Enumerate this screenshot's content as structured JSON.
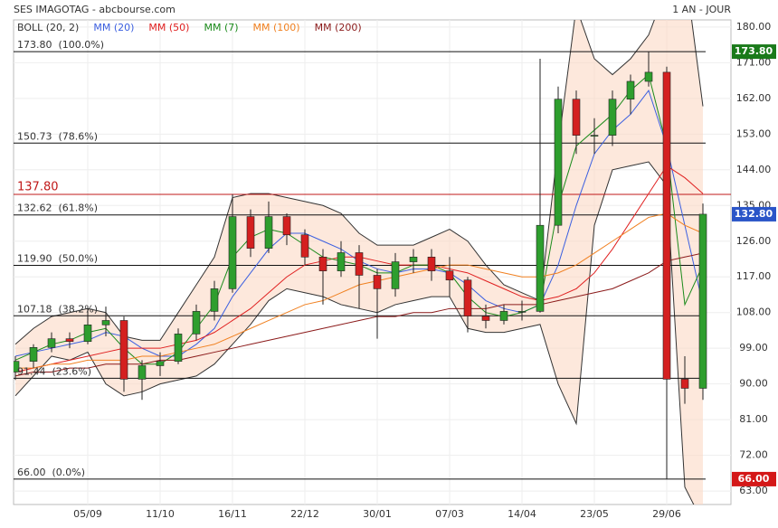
{
  "chart_data": {
    "type": "candlestick",
    "title": "SES IMAGOTAG - abcbourse.com",
    "period": "1 AN - JOUR",
    "up_color": "#2e9e2e",
    "down_color": "#d42020",
    "categories": [
      null,
      null,
      null,
      null,
      "05/09",
      null,
      null,
      null,
      "11/10",
      null,
      null,
      null,
      "16/11",
      null,
      null,
      null,
      "22/12",
      null,
      null,
      null,
      "30/01",
      null,
      null,
      null,
      "07/03",
      null,
      null,
      null,
      "14/04",
      null,
      null,
      null,
      "23/05",
      null,
      null,
      null,
      "29/06",
      null,
      null
    ],
    "open": [
      93,
      95.7,
      99.2,
      101.4,
      100.7,
      104.9,
      106,
      91.2,
      94.6,
      95.7,
      102.6,
      108.3,
      114,
      132.2,
      124.2,
      132.2,
      127.6,
      122,
      118.5,
      123.1,
      117.4,
      114,
      120.8,
      122,
      118.5,
      116.2,
      107.1,
      106,
      108.3,
      108.3,
      130,
      161.8,
      152.7,
      152.7,
      161.8,
      166.3,
      168.6,
      91.2,
      88.9
    ],
    "high": [
      97,
      100,
      103,
      103,
      109,
      109.5,
      107,
      96,
      98,
      104,
      110,
      116,
      137.8,
      134,
      136,
      133,
      129,
      124,
      126,
      125,
      119,
      123,
      124,
      124,
      122,
      117,
      110,
      110,
      111,
      172,
      165,
      164,
      157,
      164,
      168,
      173.8,
      170,
      97,
      135.5
    ],
    "low": [
      91,
      94,
      98,
      99,
      100,
      102,
      88,
      86,
      92,
      95,
      101,
      106,
      113,
      122,
      123,
      125,
      120,
      110,
      117,
      109,
      101.4,
      112,
      118,
      116,
      112,
      103,
      104,
      105,
      106,
      108,
      128,
      148,
      148,
      150,
      158,
      165,
      66,
      85,
      86
    ],
    "close": [
      95.7,
      99.2,
      101.4,
      100.7,
      104.9,
      106,
      91.2,
      94.6,
      95.7,
      102.6,
      108.3,
      114,
      132.2,
      124.2,
      132.2,
      127.6,
      122,
      118.5,
      123.1,
      117.4,
      114,
      120.8,
      122,
      118.5,
      116.2,
      107.1,
      106,
      108.3,
      108.3,
      130,
      161.8,
      152.7,
      152.7,
      161.8,
      166.3,
      168.6,
      91.2,
      88.9,
      132.8
    ],
    "bollinger": {
      "name": "BOLL (20, 2)",
      "color": "#333333",
      "fill": "#fbd9c4",
      "upper": [
        100,
        104,
        107,
        108,
        109,
        108,
        102,
        101,
        101,
        108,
        115,
        122,
        137,
        138,
        138,
        137,
        136,
        135,
        133,
        128,
        125,
        125,
        125,
        127,
        129,
        126,
        120,
        115,
        113,
        111,
        150,
        185,
        172,
        168,
        172,
        178,
        190,
        195,
        160
      ],
      "lower": [
        87,
        92,
        97,
        96,
        98,
        90,
        87,
        88,
        90,
        91,
        92,
        95,
        100,
        105,
        111,
        114,
        113,
        112,
        110,
        109,
        108,
        110,
        111,
        112,
        112,
        104,
        103,
        103,
        104,
        105,
        90,
        80,
        130,
        144,
        145,
        146,
        140,
        64,
        55
      ]
    },
    "series": [
      {
        "name": "MM (20)",
        "color": "#3b5fe0",
        "values": [
          97,
          98,
          99,
          100,
          101,
          103,
          102,
          99,
          97,
          97,
          100,
          104,
          112,
          118,
          124,
          128,
          128,
          126,
          124,
          121,
          119,
          118,
          119,
          119,
          118,
          115,
          111,
          109,
          108,
          110,
          120,
          135,
          148,
          154,
          158,
          164,
          150,
          130,
          110
        ]
      },
      {
        "name": "MM (50)",
        "color": "#e02020",
        "values": [
          93,
          94,
          95,
          96,
          97,
          98,
          99,
          99,
          99,
          100,
          101,
          103,
          106,
          109,
          113,
          117,
          120,
          121,
          122,
          122,
          121,
          120,
          120,
          120,
          119,
          118,
          116,
          114,
          112,
          111,
          112,
          114,
          118,
          124,
          131,
          138,
          145,
          142,
          138
        ]
      },
      {
        "name": "MM (7)",
        "color": "#1a8a1a",
        "values": [
          96,
          98,
          100,
          101,
          103,
          104,
          99,
          95,
          95,
          98,
          104,
          110,
          122,
          127,
          129,
          128,
          125,
          122,
          121,
          120,
          118,
          118,
          120,
          120,
          118,
          112,
          108,
          107,
          108,
          110,
          135,
          150,
          154,
          158,
          164,
          168,
          150,
          110,
          120
        ]
      },
      {
        "name": "MM (100)",
        "color": "#f08020",
        "values": [
          94,
          94,
          95,
          95,
          96,
          96,
          96,
          97,
          97,
          98,
          99,
          100,
          102,
          104,
          106,
          108,
          110,
          111,
          113,
          115,
          116,
          117,
          118,
          119,
          120,
          120,
          119,
          118,
          117,
          117,
          118,
          120,
          123,
          126,
          129,
          132,
          133,
          130,
          128
        ]
      },
      {
        "name": "MM (200)",
        "color": "#8b1a1a",
        "values": [
          92,
          93,
          93,
          94,
          94,
          95,
          95,
          95,
          96,
          96,
          97,
          98,
          99,
          100,
          101,
          102,
          103,
          104,
          105,
          106,
          107,
          107,
          108,
          108,
          109,
          109,
          109,
          110,
          110,
          110,
          111,
          112,
          113,
          114,
          116,
          118,
          121,
          122,
          123
        ]
      }
    ],
    "levels": [
      {
        "value": 173.8,
        "label": "173.80  (100.0%)"
      },
      {
        "value": 150.73,
        "label": "150.73  (78.6%)"
      },
      {
        "value": 132.62,
        "label": "132.62  (61.8%)"
      },
      {
        "value": 119.9,
        "label": "119.90  (50.0%)"
      },
      {
        "value": 107.18,
        "label": "107.18  (38.2%)"
      },
      {
        "value": 91.44,
        "label": "91.44  (23.6%)"
      },
      {
        "value": 66,
        "label": "66.00  (0.0%)"
      }
    ],
    "hline": {
      "value": 137.8,
      "label": "137.80",
      "color": "#c01818"
    },
    "axis_markers": [
      {
        "value": 173.8,
        "label": "173.80",
        "color": "#1a7a1a"
      },
      {
        "value": 132.8,
        "label": "132.80",
        "color": "#2a55c8"
      },
      {
        "value": 66,
        "label": "66.00",
        "color": "#d41818"
      }
    ],
    "ylim": [
      59.6,
      181.8
    ],
    "yticks": [
      {
        "value": 180,
        "label": "180.00"
      },
      {
        "value": 171,
        "label": "171.00"
      },
      {
        "value": 162,
        "label": "162.00"
      },
      {
        "value": 153,
        "label": "153.00"
      },
      {
        "value": 144,
        "label": "144.00"
      },
      {
        "value": 135,
        "label": "135.00"
      },
      {
        "value": 126,
        "label": "126.00"
      },
      {
        "value": 117,
        "label": "117.00"
      },
      {
        "value": 108,
        "label": "108.00"
      },
      {
        "value": 99,
        "label": "99.00"
      },
      {
        "value": 90,
        "label": "90.00"
      },
      {
        "value": 81,
        "label": "81.00"
      },
      {
        "value": 72,
        "label": "72.00"
      },
      {
        "value": 63,
        "label": "63.00"
      }
    ],
    "grid": true
  }
}
